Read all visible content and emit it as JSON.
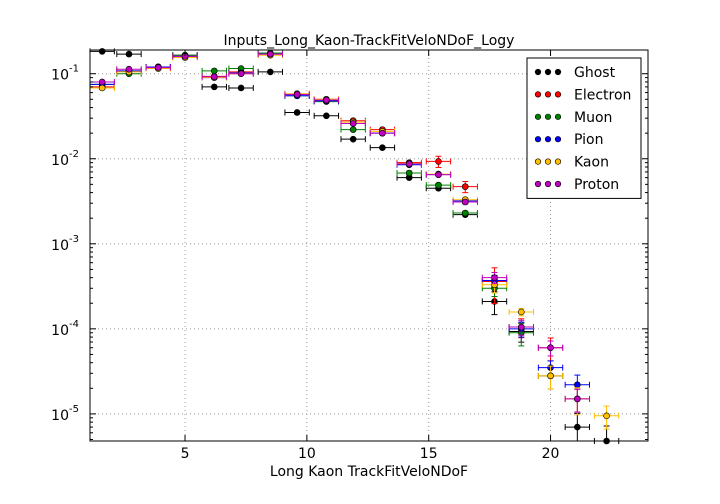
{
  "chart_data": {
    "type": "scatter",
    "title": "Inputs_Long_Kaon-TrackFitVeloNDoF_Logy",
    "xlabel": "Long Kaon TrackFitVeloNDoF",
    "ylabel": "",
    "xlim": [
      1.1,
      24.0
    ],
    "ylim": [
      4.8e-06,
      0.19
    ],
    "yscale": "log",
    "grid": true,
    "legend_position": "top-right",
    "x_ticks": [
      {
        "value": 5,
        "label": "5"
      },
      {
        "value": 10,
        "label": "10"
      },
      {
        "value": 15,
        "label": "15"
      },
      {
        "value": 20,
        "label": "20"
      }
    ],
    "y_ticks": [
      {
        "value": 1e-05,
        "mantissa": "10",
        "exponent": "-5"
      },
      {
        "value": 0.0001,
        "mantissa": "10",
        "exponent": "-4"
      },
      {
        "value": 0.001,
        "mantissa": "10",
        "exponent": "-3"
      },
      {
        "value": 0.01,
        "mantissa": "10",
        "exponent": "-2"
      },
      {
        "value": 0.1,
        "mantissa": "10",
        "exponent": "-1"
      }
    ],
    "bin_half_width": 0.5,
    "series": [
      {
        "name": "Ghost",
        "color": "#000000",
        "points": [
          [
            1.6,
            0.183
          ],
          [
            2.7,
            0.17
          ],
          [
            3.9,
            0.12
          ],
          [
            5.0,
            0.165
          ],
          [
            6.2,
            0.07
          ],
          [
            7.3,
            0.068
          ],
          [
            8.5,
            0.105
          ],
          [
            9.6,
            0.035
          ],
          [
            10.8,
            0.032
          ],
          [
            11.9,
            0.017
          ],
          [
            13.1,
            0.0135
          ],
          [
            14.2,
            0.006
          ],
          [
            15.4,
            0.0045
          ],
          [
            16.5,
            0.0022
          ],
          [
            17.7,
            0.00021
          ],
          [
            18.8,
            9.3e-05
          ],
          [
            20.0,
            2.8e-05
          ],
          [
            21.1,
            7e-06
          ],
          [
            22.3,
            4.8e-06
          ]
        ],
        "errors": [
          0,
          0,
          0,
          0,
          0,
          0,
          0,
          0,
          0,
          0,
          0,
          0,
          0,
          0,
          0.3,
          0.25,
          0.3,
          0.45,
          0.5
        ]
      },
      {
        "name": "Electron",
        "color": "#ff0000",
        "points": [
          [
            1.6,
            0.07
          ],
          [
            2.7,
            0.107
          ],
          [
            3.9,
            0.12
          ],
          [
            5.0,
            0.16
          ],
          [
            6.2,
            0.093
          ],
          [
            7.3,
            0.105
          ],
          [
            8.5,
            0.17
          ],
          [
            9.6,
            0.058
          ],
          [
            10.8,
            0.05
          ],
          [
            11.9,
            0.028
          ],
          [
            13.1,
            0.022
          ],
          [
            14.2,
            0.009
          ],
          [
            15.4,
            0.0093
          ],
          [
            16.5,
            0.0047
          ],
          [
            17.7,
            0.00036
          ],
          [
            18.8,
            0.000105
          ],
          [
            20.0,
            6e-05
          ],
          [
            21.1,
            1.5e-05
          ]
        ],
        "errors": [
          0,
          0,
          0,
          0,
          0,
          0,
          0,
          0,
          0,
          0,
          0,
          0,
          0.15,
          0.15,
          0.45,
          0.25,
          0.3,
          0.3
        ]
      },
      {
        "name": "Muon",
        "color": "#008000",
        "points": [
          [
            1.6,
            0.075
          ],
          [
            2.7,
            0.1
          ],
          [
            3.9,
            0.12
          ],
          [
            5.0,
            0.165
          ],
          [
            6.2,
            0.108
          ],
          [
            7.3,
            0.115
          ],
          [
            8.5,
            0.175
          ],
          [
            9.6,
            0.055
          ],
          [
            10.8,
            0.047
          ],
          [
            11.9,
            0.022
          ],
          [
            13.1,
            0.02
          ],
          [
            14.2,
            0.0068
          ],
          [
            15.4,
            0.0049
          ],
          [
            16.5,
            0.0023
          ],
          [
            17.7,
            0.0003
          ],
          [
            18.8,
            9e-05
          ]
        ],
        "errors": [
          0,
          0,
          0,
          0,
          0,
          0,
          0,
          0,
          0,
          0,
          0,
          0.05,
          0.05,
          0.05,
          0.2,
          0.3
        ]
      },
      {
        "name": "Pion",
        "color": "#0000ff",
        "points": [
          [
            1.6,
            0.075
          ],
          [
            2.7,
            0.108
          ],
          [
            3.9,
            0.12
          ],
          [
            5.0,
            0.16
          ],
          [
            6.2,
            0.09
          ],
          [
            7.3,
            0.102
          ],
          [
            8.5,
            0.17
          ],
          [
            9.6,
            0.055
          ],
          [
            10.8,
            0.048
          ],
          [
            11.9,
            0.026
          ],
          [
            13.1,
            0.02
          ],
          [
            14.2,
            0.0085
          ],
          [
            15.4,
            0.0065
          ],
          [
            16.5,
            0.0032
          ],
          [
            17.7,
            0.00037
          ],
          [
            18.8,
            0.0001
          ],
          [
            20.0,
            3.5e-05
          ],
          [
            21.1,
            2.2e-05
          ]
        ],
        "errors": [
          0,
          0,
          0,
          0,
          0,
          0,
          0,
          0,
          0,
          0,
          0,
          0,
          0,
          0.05,
          0.15,
          0.2,
          0.2,
          0.3
        ]
      },
      {
        "name": "Kaon",
        "color": "#ffbf00",
        "points": [
          [
            1.6,
            0.068
          ],
          [
            2.7,
            0.105
          ],
          [
            3.9,
            0.115
          ],
          [
            5.0,
            0.155
          ],
          [
            6.2,
            0.09
          ],
          [
            7.3,
            0.1
          ],
          [
            8.5,
            0.165
          ],
          [
            9.6,
            0.058
          ],
          [
            10.8,
            0.05
          ],
          [
            11.9,
            0.027
          ],
          [
            13.1,
            0.021
          ],
          [
            14.2,
            0.0088
          ],
          [
            15.4,
            0.0066
          ],
          [
            16.5,
            0.0033
          ],
          [
            17.7,
            0.00033
          ],
          [
            18.8,
            0.000158
          ],
          [
            20.0,
            2.8e-05
          ],
          [
            21.1,
            1.5e-05
          ],
          [
            22.3,
            9.5e-06
          ]
        ],
        "errors": [
          0,
          0,
          0,
          0,
          0,
          0,
          0,
          0,
          0,
          0,
          0,
          0,
          0,
          0.05,
          0.2,
          0.1,
          0.3,
          0.35,
          0.3
        ]
      },
      {
        "name": "Proton",
        "color": "#bf00bf",
        "points": [
          [
            1.6,
            0.08
          ],
          [
            2.7,
            0.113
          ],
          [
            3.9,
            0.118
          ],
          [
            5.0,
            0.16
          ],
          [
            6.2,
            0.092
          ],
          [
            7.3,
            0.1
          ],
          [
            8.5,
            0.17
          ],
          [
            9.6,
            0.057
          ],
          [
            10.8,
            0.049
          ],
          [
            11.9,
            0.026
          ],
          [
            13.1,
            0.02
          ],
          [
            14.2,
            0.0087
          ],
          [
            15.4,
            0.0065
          ],
          [
            16.5,
            0.0031
          ],
          [
            17.7,
            0.0004
          ],
          [
            18.8,
            0.000105
          ],
          [
            20.0,
            6e-05
          ],
          [
            21.1,
            1.5e-05
          ]
        ],
        "errors": [
          0,
          0,
          0,
          0,
          0,
          0,
          0,
          0,
          0,
          0,
          0,
          0,
          0,
          0.05,
          0.15,
          0.2,
          0.2,
          0.3
        ]
      }
    ]
  }
}
